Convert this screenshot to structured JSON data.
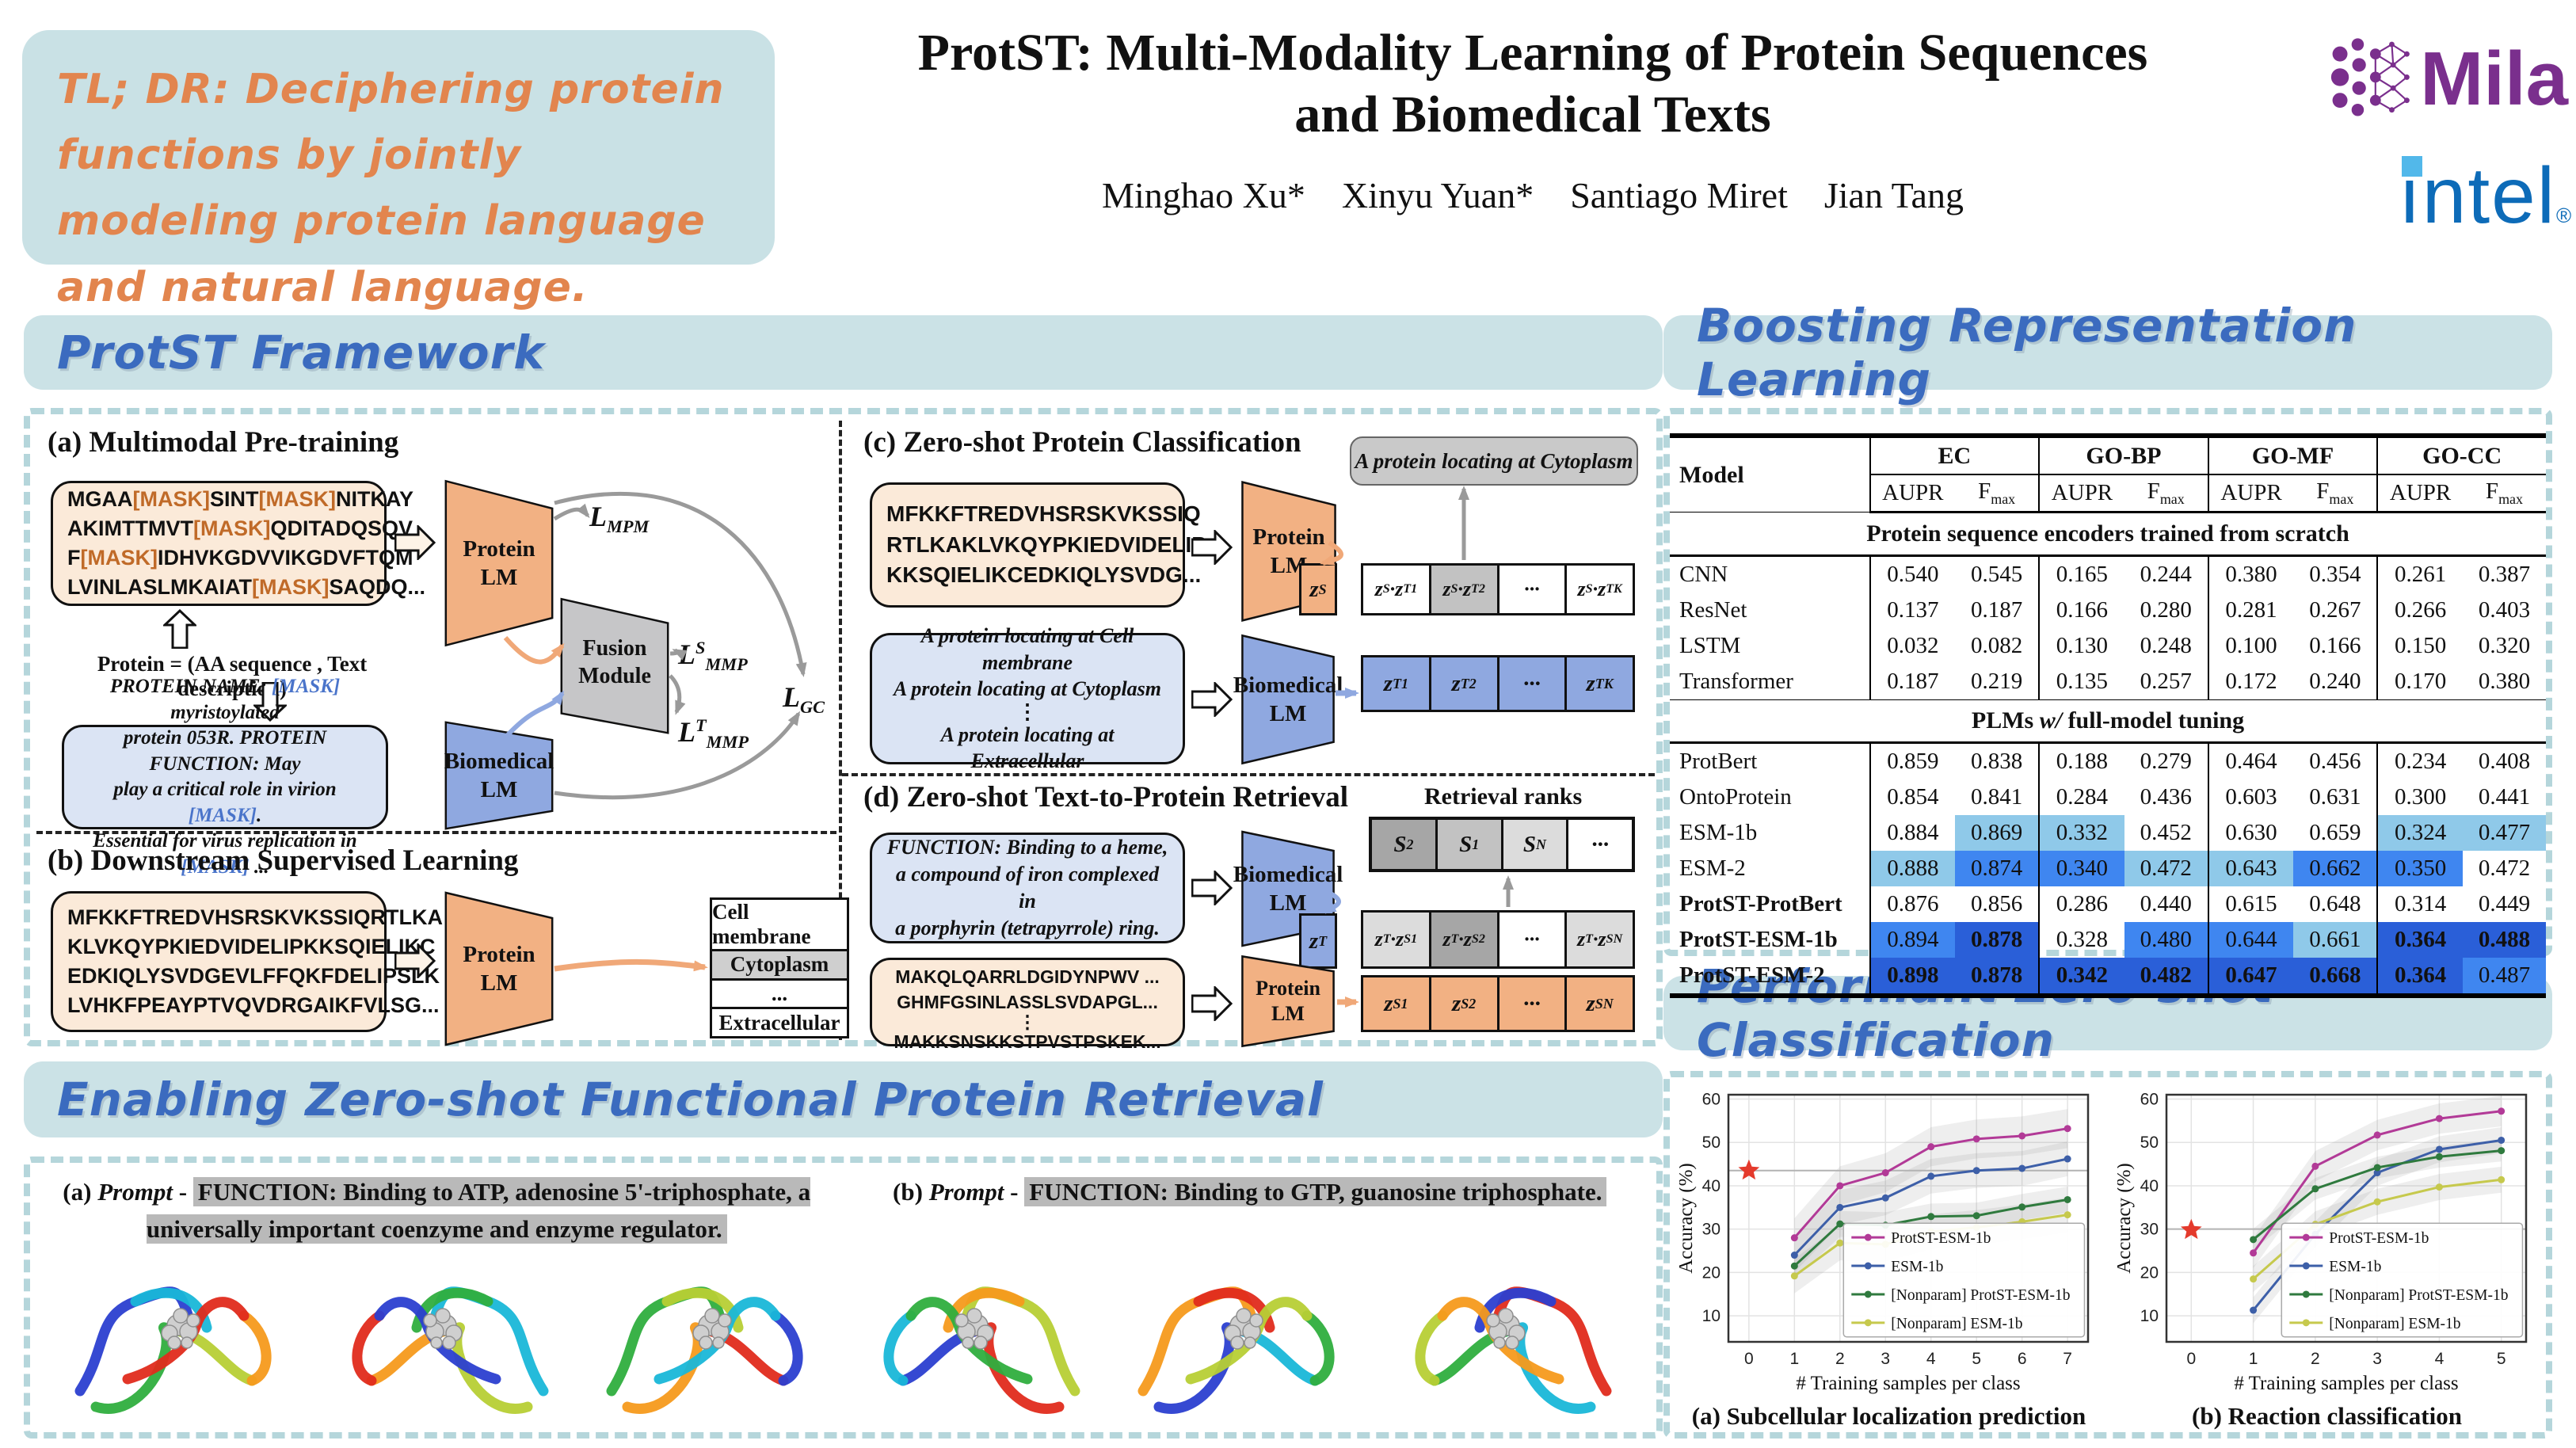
{
  "colors": {
    "accent_blue": "#3b6bbf",
    "panel_teal": "#cbe2e6",
    "tldr_orange": "#e2854e",
    "mila_purple": "#7a2f8d",
    "intel_blue": "#0d6bb8",
    "hl_light": "#8fc9e9",
    "hl_mid": "#3f86f0",
    "hl_dark": "#2a5fd8",
    "protein_orange": "#f2b183",
    "biomedical_blue": "#8fa8e0"
  },
  "header": {
    "tldr": "TL; DR: Deciphering protein functions by jointly modeling protein language and natural language.",
    "title_line1": "ProtST: Multi-Modality Learning of Protein Sequences",
    "title_line2": "and Biomedical Texts",
    "authors": "Minghao Xu*    Xinyu Yuan*    Santiago Miret    Jian Tang",
    "logos": {
      "mila": "Mila",
      "intel": "intel",
      "intel_reg": "®"
    }
  },
  "sections": {
    "framework": "ProtST Framework",
    "boosting": "Boosting Representation Learning",
    "retrieval": "Enabling Zero-shot Functional Protein Retrieval",
    "performant": "Performant Zero-shot Classification"
  },
  "framework": {
    "a": {
      "title": "(a) Multimodal Pre-training",
      "seq": "MGAA[MASK]SINT[MASK]NITKAY\nAKIMTTMVT[MASK]QDITADQSQV\nF[MASK]IDHVKGDVVIKGDVFTQM\nLVINLASLMKAIAT[MASK]SAQDQ...",
      "equation": "Protein = (AA sequence , Text description)",
      "text": "PROTEIN NAME: [MASK] myristoylated\nprotein 053R. PROTEIN FUNCTION: May\nplay a critical role in virion [MASK].\nEssential for virus replication in [MASK] ...",
      "protein_lm": "Protein\nLM",
      "biomedical_lm": "Biomedical\nLM",
      "fusion": "Fusion\nModule",
      "loss_mpm": "L_MPM",
      "loss_smmp": "L^S_MMP",
      "loss_tmmp": "L^T_MMP",
      "loss_gc": "L_GC"
    },
    "b": {
      "title": "(b) Downstream Supervised Learning",
      "seq": "MFKKFTREDVHSRSKVKSSIQRTLKA\nKLVKQYPKIEDVIDELIPKKSQIELIKC\nEDKIQLYSVDGEVLFFQKFDELIPSLK\nLVHKFPEAYPTVQVDRGAIKFVLSG...",
      "protein_lm": "Protein\nLM",
      "classes": [
        {
          "label": "Cell membrane",
          "hl": false
        },
        {
          "label": "Cytoplasm",
          "hl": true
        },
        {
          "label": "...",
          "hl": false
        },
        {
          "label": "Extracellular",
          "hl": false
        }
      ]
    },
    "c": {
      "title": "(c) Zero-shot Protein Classification",
      "seq": "MFKKFTREDVHSRSKVKSSIQ\nRTLKAKLVKQYPKIEDVIDELIP\nKKSQIELIKCEDKIQLYSVDG...",
      "text_lines": [
        "A protein locating at **Cell membrane**",
        "A protein locating at **Cytoplasm**",
        "⋮",
        "A protein locating at **Extracellular**"
      ],
      "result": "A protein locating at **Cytoplasm**",
      "protein_lm": "Protein\nLM",
      "biomedical_lm": "Biomedical\nLM",
      "z_s": "z^S",
      "sim_cells": [
        {
          "t": "z^S·z^T_1",
          "bg": "w"
        },
        {
          "t": "z^S·z^T_2",
          "bg": "m"
        },
        {
          "t": "···",
          "bg": "w"
        },
        {
          "t": "z^S·z^T_K",
          "bg": "w"
        }
      ],
      "text_cells": [
        {
          "t": "z^T_1",
          "bg": "bl"
        },
        {
          "t": "z^T_2",
          "bg": "bl"
        },
        {
          "t": "···",
          "bg": "bl"
        },
        {
          "t": "z^T_K",
          "bg": "bl"
        }
      ]
    },
    "d": {
      "title": "(d) Zero-shot Text-to-Protein Retrieval",
      "ranks_label": "Retrieval ranks",
      "rank_cells": [
        {
          "t": "S_2",
          "bg": "d"
        },
        {
          "t": "S_1",
          "bg": "m"
        },
        {
          "t": "S_N",
          "bg": "l"
        },
        {
          "t": "···",
          "bg": "w"
        }
      ],
      "text": "FUNCTION: **Binding to a heme**,\na compound of iron complexed in\na porphyrin (tetrapyrrole) ring.",
      "seq_lines": [
        "MAKQLQARRLDGIDYNPWV ...",
        "GHMFGSINLASSLSVDAPGL...",
        "⋮",
        "MAKKSNSKKSTPVSTPSKEK..."
      ],
      "protein_lm": "Protein\nLM",
      "biomedical_lm": "Biomedical\nLM",
      "z_t": "z^T",
      "sim_cells": [
        {
          "t": "z^T·z^S_1",
          "bg": "l"
        },
        {
          "t": "z^T·z^S_2",
          "bg": "d"
        },
        {
          "t": "···",
          "bg": "w"
        },
        {
          "t": "z^T·z^S_N",
          "bg": "l"
        }
      ],
      "prot_cells": [
        {
          "t": "z^S_1",
          "bg": "or"
        },
        {
          "t": "z^S_2",
          "bg": "or"
        },
        {
          "t": "···",
          "bg": "or"
        },
        {
          "t": "z^S_N",
          "bg": "or"
        }
      ]
    }
  },
  "table": {
    "model_header": "Model",
    "groups": [
      "EC",
      "GO-BP",
      "GO-MF",
      "GO-CC"
    ],
    "metrics": [
      "AUPR",
      "F_max"
    ],
    "sections": [
      "Protein sequence encoders trained from scratch",
      "PLMs *w/* full-model tuning"
    ],
    "rows": [
      {
        "model": "CNN",
        "sec": 0,
        "bold": false,
        "v": [
          "0.540",
          "0.545",
          "0.165",
          "0.244",
          "0.380",
          "0.354",
          "0.261",
          "0.387"
        ],
        "h": [
          0,
          0,
          0,
          0,
          0,
          0,
          0,
          0
        ],
        "vb": [
          0,
          0,
          0,
          0,
          0,
          0,
          0,
          0
        ]
      },
      {
        "model": "ResNet",
        "sec": 0,
        "bold": false,
        "v": [
          "0.137",
          "0.187",
          "0.166",
          "0.280",
          "0.281",
          "0.267",
          "0.266",
          "0.403"
        ],
        "h": [
          0,
          0,
          0,
          0,
          0,
          0,
          0,
          0
        ],
        "vb": [
          0,
          0,
          0,
          0,
          0,
          0,
          0,
          0
        ]
      },
      {
        "model": "LSTM",
        "sec": 0,
        "bold": false,
        "v": [
          "0.032",
          "0.082",
          "0.130",
          "0.248",
          "0.100",
          "0.166",
          "0.150",
          "0.320"
        ],
        "h": [
          0,
          0,
          0,
          0,
          0,
          0,
          0,
          0
        ],
        "vb": [
          0,
          0,
          0,
          0,
          0,
          0,
          0,
          0
        ]
      },
      {
        "model": "Transformer",
        "sec": 0,
        "bold": false,
        "v": [
          "0.187",
          "0.219",
          "0.135",
          "0.257",
          "0.172",
          "0.240",
          "0.170",
          "0.380"
        ],
        "h": [
          0,
          0,
          0,
          0,
          0,
          0,
          0,
          0
        ],
        "vb": [
          0,
          0,
          0,
          0,
          0,
          0,
          0,
          0
        ]
      },
      {
        "model": "ProtBert",
        "sec": 1,
        "bold": false,
        "v": [
          "0.859",
          "0.838",
          "0.188",
          "0.279",
          "0.464",
          "0.456",
          "0.234",
          "0.408"
        ],
        "h": [
          0,
          0,
          0,
          0,
          0,
          0,
          0,
          0
        ],
        "vb": [
          0,
          0,
          0,
          0,
          0,
          0,
          0,
          0
        ]
      },
      {
        "model": "OntoProtein",
        "sec": 1,
        "bold": false,
        "v": [
          "0.854",
          "0.841",
          "0.284",
          "0.436",
          "0.603",
          "0.631",
          "0.300",
          "0.441"
        ],
        "h": [
          0,
          0,
          0,
          0,
          0,
          0,
          0,
          0
        ],
        "vb": [
          0,
          0,
          0,
          0,
          0,
          0,
          0,
          0
        ]
      },
      {
        "model": "ESM-1b",
        "sec": 1,
        "bold": false,
        "v": [
          "0.884",
          "0.869",
          "0.332",
          "0.452",
          "0.630",
          "0.659",
          "0.324",
          "0.477"
        ],
        "h": [
          0,
          1,
          1,
          0,
          0,
          0,
          1,
          1
        ],
        "vb": [
          0,
          0,
          0,
          0,
          0,
          0,
          0,
          0
        ]
      },
      {
        "model": "ESM-2",
        "sec": 1,
        "bold": false,
        "v": [
          "0.888",
          "0.874",
          "0.340",
          "0.472",
          "0.643",
          "0.662",
          "0.350",
          "0.472"
        ],
        "h": [
          1,
          2,
          2,
          1,
          1,
          2,
          2,
          0
        ],
        "vb": [
          0,
          0,
          0,
          0,
          0,
          0,
          0,
          0
        ]
      },
      {
        "model": "ProtST-ProtBert",
        "sec": 1,
        "bold": true,
        "v": [
          "0.876",
          "0.856",
          "0.286",
          "0.440",
          "0.615",
          "0.648",
          "0.314",
          "0.449"
        ],
        "h": [
          0,
          0,
          0,
          0,
          0,
          0,
          0,
          0
        ],
        "vb": [
          0,
          0,
          0,
          0,
          0,
          0,
          0,
          0
        ]
      },
      {
        "model": "ProtST-ESM-1b",
        "sec": 1,
        "bold": true,
        "v": [
          "0.894",
          "0.878",
          "0.328",
          "0.480",
          "0.644",
          "0.661",
          "0.364",
          "0.488"
        ],
        "h": [
          2,
          3,
          0,
          2,
          2,
          1,
          3,
          3
        ],
        "vb": [
          0,
          1,
          0,
          0,
          0,
          0,
          1,
          1
        ]
      },
      {
        "model": "ProtST-ESM-2",
        "sec": 1,
        "bold": true,
        "v": [
          "0.898",
          "0.878",
          "0.342",
          "0.482",
          "0.647",
          "0.668",
          "0.364",
          "0.487"
        ],
        "h": [
          3,
          3,
          3,
          3,
          3,
          3,
          3,
          2
        ],
        "vb": [
          1,
          1,
          1,
          1,
          1,
          1,
          1,
          0
        ]
      }
    ]
  },
  "retrieval": {
    "prompt_a_prefix": "(a) *Prompt* - ",
    "prompt_a": "FUNCTION: Binding to ATP, adenosine 5'-triphosphate, a universally important coenzyme and enzyme regulator.",
    "prompt_b_prefix": "(b) *Prompt* - ",
    "prompt_b": "FUNCTION: Binding to GTP, guanosine triphosphate."
  },
  "chart_data": [
    {
      "type": "line",
      "caption": "(a) Subcellular localization prediction",
      "xlabel": "# Training samples per class",
      "ylabel": "Accuracy (%)",
      "xticks": [
        0,
        1,
        2,
        3,
        4,
        5,
        6,
        7
      ],
      "yticks": [
        10,
        20,
        30,
        40,
        50,
        60
      ],
      "xlim": [
        -0.45,
        7.45
      ],
      "ylim": [
        4,
        61
      ],
      "x": [
        1,
        2,
        3,
        4,
        5,
        6,
        7
      ],
      "hline": 43.5,
      "star": {
        "x": 0,
        "y": 43.5
      },
      "legend_position": "lower right",
      "grid": true,
      "series": [
        {
          "name": "ProtST-ESM-1b",
          "color": "#b23a97",
          "band": 4.5,
          "values": [
            28,
            40,
            43,
            49,
            50.8,
            51.5,
            53.2
          ]
        },
        {
          "name": "ESM-1b",
          "color": "#3d5fa8",
          "band": 4,
          "values": [
            24,
            35,
            37.2,
            42.2,
            43.5,
            44,
            46.2
          ]
        },
        {
          "name": "[Nonparam] ProtST-ESM-1b",
          "color": "#2f7a3e",
          "band": 3,
          "values": [
            21.5,
            31.2,
            30.9,
            32.9,
            33.1,
            35.1,
            36.8
          ]
        },
        {
          "name": "[Nonparam] ESM-1b",
          "color": "#c6c94d",
          "band": 4,
          "values": [
            19.2,
            26.8,
            26.5,
            29.4,
            30.4,
            31.7,
            33.3
          ]
        }
      ]
    },
    {
      "type": "line",
      "caption": "(b) Reaction classification",
      "xlabel": "# Training samples per class",
      "ylabel": "Accuracy (%)",
      "xticks": [
        0,
        1,
        2,
        3,
        4,
        5
      ],
      "yticks": [
        10,
        20,
        30,
        40,
        50,
        60
      ],
      "xlim": [
        -0.4,
        5.4
      ],
      "ylim": [
        4,
        61
      ],
      "x": [
        1,
        2,
        3,
        4,
        5
      ],
      "hline": 30,
      "star": {
        "x": 0,
        "y": 29.8
      },
      "legend_position": "lower right",
      "grid": true,
      "series": [
        {
          "name": "ProtST-ESM-1b",
          "color": "#b23a97",
          "band": 3.5,
          "values": [
            24.5,
            44.5,
            51.7,
            55.5,
            57.2
          ]
        },
        {
          "name": "ESM-1b",
          "color": "#3d5fa8",
          "band": 3,
          "values": [
            11.3,
            28.8,
            43,
            48.4,
            50.5
          ]
        },
        {
          "name": "[Nonparam] ProtST-ESM-1b",
          "color": "#2f7a3e",
          "band": 2.5,
          "values": [
            27.6,
            39.3,
            44.2,
            46.7,
            48.1
          ]
        },
        {
          "name": "[Nonparam] ESM-1b",
          "color": "#c6c94d",
          "band": 3,
          "values": [
            18.5,
            31.1,
            36.3,
            39.7,
            41.4
          ]
        }
      ]
    }
  ]
}
